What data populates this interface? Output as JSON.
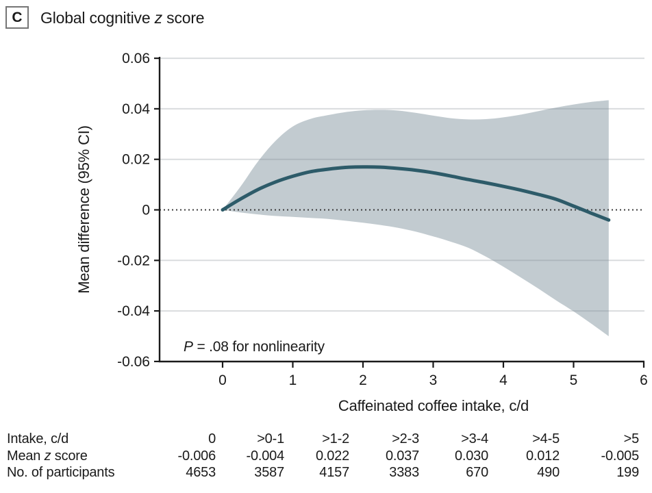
{
  "panel": {
    "letter": "C",
    "title_parts": [
      {
        "t": "Global cognitive "
      },
      {
        "t": "z",
        "i": true
      },
      {
        "t": " score"
      }
    ]
  },
  "chart_data": {
    "type": "line",
    "title": "Global cognitive z score",
    "xlabel": "Caffeinated coffee intake, c/d",
    "ylabel": "Mean difference (95% CI)",
    "xlim": [
      -0.9,
      6.05
    ],
    "ylim": [
      -0.06,
      0.06
    ],
    "xticks": [
      0,
      1,
      2,
      3,
      4,
      5,
      6
    ],
    "xtick_labels": [
      "0",
      "1",
      "2",
      "3",
      "4",
      "5",
      "6"
    ],
    "yticks": [
      0.06,
      0.04,
      0.02,
      0,
      -0.02,
      -0.04,
      -0.06
    ],
    "ytick_labels": [
      "0.06",
      "0.04",
      "0.02",
      "0",
      "-0.02",
      "-0.04",
      "-0.06"
    ],
    "grid": "horizontal",
    "grid_yticks": [
      0.06,
      0.04,
      0.02,
      -0.02,
      -0.04
    ],
    "zero_reference_line": 0,
    "legend": "none",
    "annotation_parts": [
      {
        "t": "P",
        "i": true
      },
      {
        "t": " = .08 for nonlinearity"
      }
    ],
    "annotation_xy": [
      0.0,
      -0.055
    ],
    "colors": {
      "line": "#2d5b69",
      "band": "#c2cbd0",
      "grid": "rgba(130,140,145,0.30)",
      "axis": "#1a1a1a",
      "zero_line": "#3a3a3a"
    },
    "series": [
      {
        "name": "mean-difference-spline",
        "points": [
          [
            0,
            0
          ],
          [
            0.25,
            0.0042
          ],
          [
            0.5,
            0.008
          ],
          [
            0.75,
            0.011
          ],
          [
            1,
            0.0133
          ],
          [
            1.25,
            0.0151
          ],
          [
            1.5,
            0.0161
          ],
          [
            1.75,
            0.0168
          ],
          [
            2,
            0.017
          ],
          [
            2.25,
            0.0169
          ],
          [
            2.5,
            0.0164
          ],
          [
            2.75,
            0.0157
          ],
          [
            3,
            0.0147
          ],
          [
            3.25,
            0.0134
          ],
          [
            3.5,
            0.012
          ],
          [
            3.75,
            0.0107
          ],
          [
            4,
            0.0093
          ],
          [
            4.25,
            0.0078
          ],
          [
            4.5,
            0.0061
          ],
          [
            4.75,
            0.0042
          ],
          [
            5,
            0.0015
          ],
          [
            5.25,
            -0.0013
          ],
          [
            5.5,
            -0.004
          ]
        ]
      },
      {
        "name": "ci-upper",
        "points": [
          [
            0,
            0
          ],
          [
            0.25,
            0.009
          ],
          [
            0.5,
            0.019
          ],
          [
            0.75,
            0.0272
          ],
          [
            1,
            0.033
          ],
          [
            1.25,
            0.036
          ],
          [
            1.5,
            0.0375
          ],
          [
            1.75,
            0.0387
          ],
          [
            2,
            0.0394
          ],
          [
            2.25,
            0.0396
          ],
          [
            2.5,
            0.0393
          ],
          [
            2.75,
            0.0384
          ],
          [
            3,
            0.0373
          ],
          [
            3.25,
            0.0363
          ],
          [
            3.5,
            0.0358
          ],
          [
            3.75,
            0.0359
          ],
          [
            4,
            0.0366
          ],
          [
            4.25,
            0.0377
          ],
          [
            4.5,
            0.0391
          ],
          [
            4.75,
            0.0405
          ],
          [
            5,
            0.0417
          ],
          [
            5.25,
            0.0427
          ],
          [
            5.5,
            0.0434
          ]
        ]
      },
      {
        "name": "ci-lower",
        "points": [
          [
            0,
            0
          ],
          [
            0.25,
            -0.001
          ],
          [
            0.5,
            -0.0018
          ],
          [
            0.75,
            -0.0024
          ],
          [
            1,
            -0.0028
          ],
          [
            1.25,
            -0.0032
          ],
          [
            1.5,
            -0.0036
          ],
          [
            1.75,
            -0.0043
          ],
          [
            2,
            -0.0051
          ],
          [
            2.25,
            -0.006
          ],
          [
            2.5,
            -0.0071
          ],
          [
            2.75,
            -0.0086
          ],
          [
            3,
            -0.0105
          ],
          [
            3.25,
            -0.0126
          ],
          [
            3.5,
            -0.015
          ],
          [
            3.75,
            -0.0185
          ],
          [
            4,
            -0.0225
          ],
          [
            4.25,
            -0.0268
          ],
          [
            4.5,
            -0.0312
          ],
          [
            4.75,
            -0.0358
          ],
          [
            5,
            -0.0402
          ],
          [
            5.25,
            -0.045
          ],
          [
            5.5,
            -0.05
          ]
        ]
      }
    ]
  },
  "table": {
    "rows": [
      {
        "name": "intake-row",
        "label_parts": [
          {
            "t": "Intake, c/d"
          }
        ],
        "values": [
          "0",
          ">0-1",
          ">1-2",
          ">2-3",
          ">3-4",
          ">4-5",
          ">5"
        ]
      },
      {
        "name": "mean-z-score-row",
        "label_parts": [
          {
            "t": "Mean "
          },
          {
            "t": "z",
            "i": true
          },
          {
            "t": " score"
          }
        ],
        "values": [
          "-0.006",
          "-0.004",
          "0.022",
          "0.037",
          "0.030",
          "0.012",
          "-0.005"
        ]
      },
      {
        "name": "participants-row",
        "label_parts": [
          {
            "t": "No. of participants"
          }
        ],
        "values": [
          "4653",
          "3587",
          "4157",
          "3383",
          "670",
          "490",
          "199"
        ]
      }
    ]
  }
}
